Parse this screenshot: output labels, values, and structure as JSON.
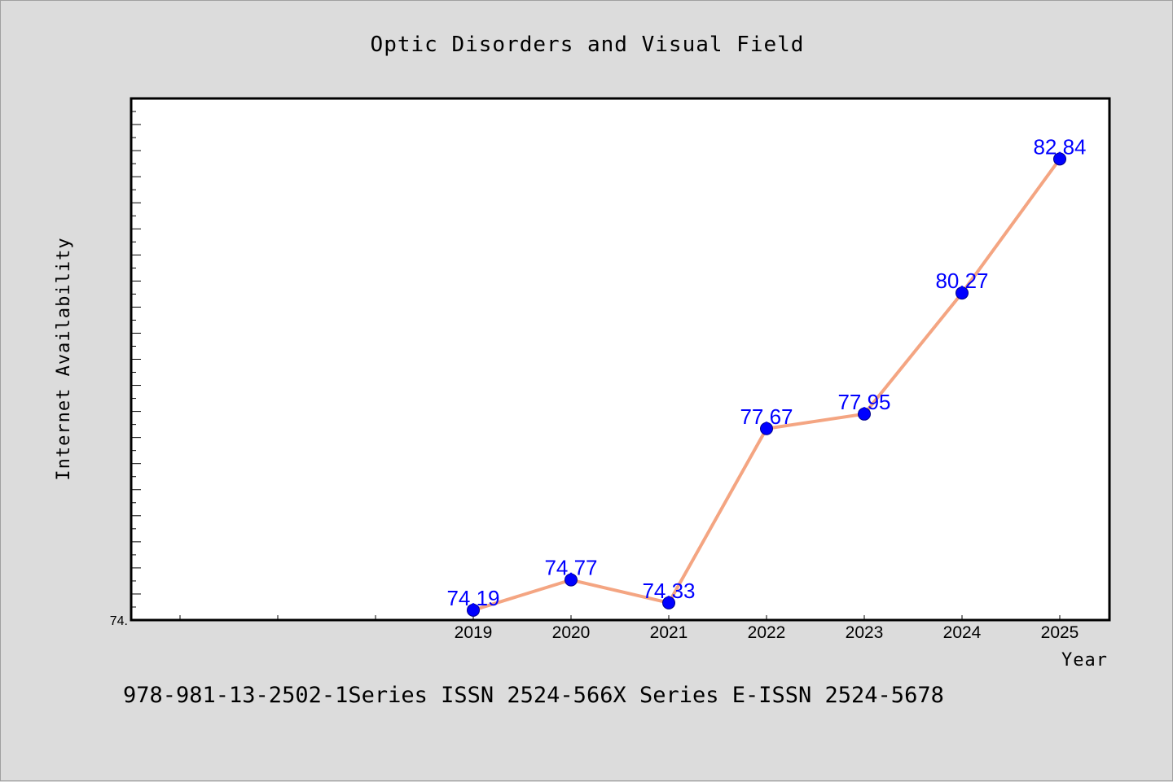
{
  "chart_data": {
    "type": "line",
    "title": "Optic Disorders and Visual Field",
    "xlabel": "Year",
    "ylabel": "Internet Availability",
    "categories": [
      "2019",
      "2020",
      "2021",
      "2022",
      "2023",
      "2024",
      "2025"
    ],
    "series": [
      {
        "values": [
          74.19,
          74.77,
          74.33,
          77.67,
          77.95,
          80.27,
          82.84
        ],
        "data_labels": [
          "74.19",
          "74.77",
          "74.33",
          "77.67",
          "77.95",
          "80.27",
          "82.84"
        ],
        "line_color": "#f4a582",
        "marker_color": "#0000ff"
      }
    ],
    "ytick_label": "74.",
    "ylim": [
      74.0,
      84.0
    ],
    "grid": false,
    "legend": "none"
  },
  "footer": "978-981-13-2502-1Series ISSN 2524-566X Series E-ISSN 2524-5678",
  "colors": {
    "background": "#dcdcdc",
    "plot_background": "#ffffff",
    "label_color": "#0000ff"
  }
}
